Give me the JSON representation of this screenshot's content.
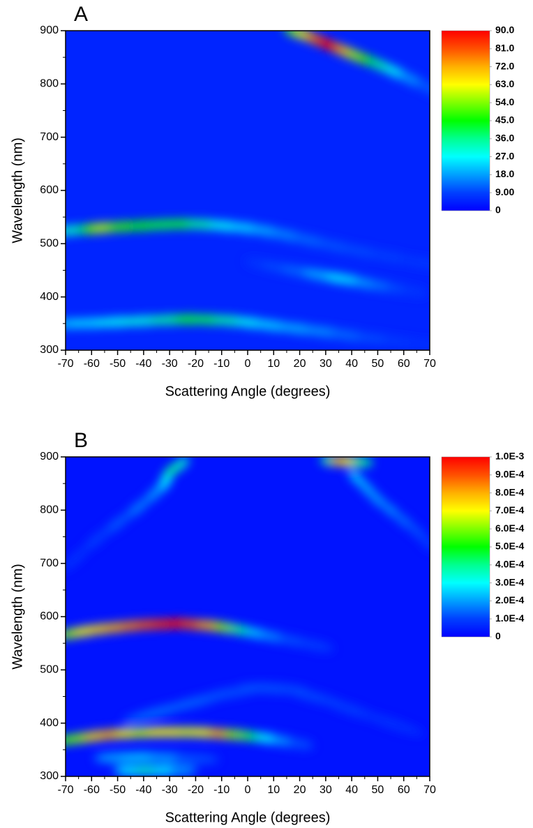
{
  "chart_data": [
    {
      "type": "heatmap",
      "label": "A",
      "xlabel": "Scattering Angle (degrees)",
      "ylabel": "Wavelength (nm)",
      "xlim": [
        -70,
        70
      ],
      "ylim": [
        300,
        900
      ],
      "xticks": [
        -70,
        -60,
        -50,
        -40,
        -30,
        -20,
        -10,
        0,
        10,
        20,
        30,
        40,
        50,
        60,
        70
      ],
      "yticks": [
        300,
        400,
        500,
        600,
        700,
        800,
        900
      ],
      "zlim": [
        0,
        90
      ],
      "zticks": [
        0,
        {
          "value": 9,
          "label": "9.00"
        },
        {
          "value": 18,
          "label": "18.0"
        },
        {
          "value": 27,
          "label": "27.0"
        },
        {
          "value": 36,
          "label": "36.0"
        },
        {
          "value": 45,
          "label": "45.0"
        },
        {
          "value": 54,
          "label": "54.0"
        },
        {
          "value": 63,
          "label": "63.0"
        },
        {
          "value": 72,
          "label": "72.0"
        },
        {
          "value": 81,
          "label": "81.0"
        },
        {
          "value": 90,
          "label": "90.0"
        }
      ],
      "background_value": 5,
      "ridges": [
        {
          "x": [
            18,
            22,
            26,
            30,
            34,
            38,
            42,
            47,
            52,
            57,
            63,
            70
          ],
          "y": [
            898,
            892,
            884,
            876,
            868,
            860,
            852,
            843,
            833,
            822,
            808,
            792
          ],
          "values": [
            50,
            62,
            78,
            90,
            88,
            70,
            55,
            45,
            35,
            28,
            18,
            12
          ]
        },
        {
          "x": [
            -68,
            -60,
            -55,
            -48,
            -40,
            -32,
            -24,
            -16,
            -8,
            0,
            8,
            16,
            25,
            35,
            45,
            55,
            65,
            70
          ],
          "y": [
            525,
            528,
            530,
            532,
            534,
            536,
            537,
            536,
            533,
            529,
            523,
            515,
            505,
            494,
            484,
            475,
            466,
            462
          ],
          "values": [
            32,
            45,
            58,
            48,
            44,
            42,
            42,
            35,
            28,
            24,
            20,
            16,
            13,
            11,
            10,
            9,
            8,
            8
          ]
        },
        {
          "x": [
            5,
            12,
            20,
            28,
            35,
            40,
            46,
            52,
            58,
            64
          ],
          "y": [
            462,
            455,
            448,
            441,
            435,
            431,
            425,
            420,
            415,
            410
          ],
          "values": [
            8,
            10,
            13,
            20,
            26,
            24,
            18,
            14,
            10,
            8
          ]
        },
        {
          "x": [
            -68,
            -60,
            -50,
            -40,
            -30,
            -22,
            -14,
            -6,
            2,
            10,
            20,
            30,
            40,
            50,
            60,
            70
          ],
          "y": [
            350,
            351,
            353,
            355,
            357,
            358,
            357,
            355,
            351,
            346,
            340,
            334,
            327,
            321,
            315,
            310
          ],
          "values": [
            22,
            24,
            28,
            30,
            35,
            42,
            40,
            34,
            28,
            23,
            20,
            17,
            13,
            10,
            8,
            7
          ]
        }
      ]
    },
    {
      "type": "heatmap",
      "label": "B",
      "xlabel": "Scattering Angle (degrees)",
      "ylabel": "Wavelength (nm)",
      "xlim": [
        -70,
        70
      ],
      "ylim": [
        300,
        900
      ],
      "xticks": [
        -70,
        -60,
        -50,
        -40,
        -30,
        -20,
        -10,
        0,
        10,
        20,
        30,
        40,
        50,
        60,
        70
      ],
      "yticks": [
        300,
        400,
        500,
        600,
        700,
        800,
        900
      ],
      "zlim": [
        0,
        0.001
      ],
      "zticks": [
        0,
        {
          "value": 0.0001,
          "label": "1.0E-4"
        },
        {
          "value": 0.0002,
          "label": "2.0E-4"
        },
        {
          "value": 0.0003,
          "label": "3.0E-4"
        },
        {
          "value": 0.0004,
          "label": "4.0E-4"
        },
        {
          "value": 0.0005,
          "label": "5.0E-4"
        },
        {
          "value": 0.0006,
          "label": "6.0E-4"
        },
        {
          "value": 0.0007,
          "label": "7.0E-4"
        },
        {
          "value": 0.0008,
          "label": "8.0E-4"
        },
        {
          "value": 0.0009,
          "label": "9.0E-4"
        },
        {
          "value": 0.001,
          "label": "1.0E-3"
        }
      ],
      "background_value": 3e-05,
      "ridges": [
        {
          "x": [
            -68,
            -62,
            -56,
            -50,
            -44,
            -38,
            -32,
            -26,
            -20,
            -14,
            -8,
            -2,
            4,
            10,
            18,
            26
          ],
          "y": [
            568,
            573,
            577,
            580,
            583,
            585,
            586,
            587,
            585,
            583,
            579,
            574,
            568,
            562,
            554,
            546
          ],
          "values": [
            0.0006,
            0.0007,
            0.00075,
            0.0008,
            0.00085,
            0.0009,
            0.00095,
            0.001,
            0.0009,
            0.0008,
            0.0006,
            0.0004,
            0.00025,
            0.00018,
            0.00012,
            0.0001
          ]
        },
        {
          "x": [
            -70,
            -64,
            -58,
            -52,
            -46,
            -40,
            -34,
            -28,
            -22,
            -16,
            -10,
            -4,
            2,
            8,
            14,
            20
          ],
          "y": [
            368,
            372,
            376,
            379,
            381,
            382,
            383,
            383,
            383,
            382,
            380,
            378,
            375,
            371,
            366,
            361
          ],
          "values": [
            0.0005,
            0.0006,
            0.00075,
            0.0008,
            0.0007,
            0.00065,
            0.0007,
            0.0007,
            0.00068,
            0.0007,
            0.0008,
            0.0006,
            0.00045,
            0.0003,
            0.0002,
            0.00012
          ]
        },
        {
          "x": [
            32,
            36,
            40,
            44
          ],
          "y": [
            893,
            892,
            891,
            890
          ],
          "values": [
            0.0004,
            0.0008,
            0.0007,
            0.0004
          ]
        },
        {
          "x": [
            -26,
            -30,
            -32,
            -36,
            -42,
            -50,
            -58,
            -66
          ],
          "y": [
            885,
            870,
            850,
            830,
            805,
            775,
            745,
            710
          ],
          "values": [
            0.00035,
            0.0004,
            0.0003,
            0.0002,
            0.00017,
            0.00013,
            0.0001,
            8e-05
          ]
        },
        {
          "x": [
            42,
            46,
            50,
            55,
            60,
            65,
            69
          ],
          "y": [
            860,
            840,
            820,
            800,
            780,
            760,
            740
          ],
          "values": [
            0.00025,
            0.00022,
            0.0002,
            0.00018,
            0.00015,
            0.00012,
            0.0001
          ]
        },
        {
          "x": [
            -50,
            -40,
            -30,
            -20
          ],
          "y": [
            335,
            336,
            335,
            333
          ],
          "values": [
            0.00022,
            0.00025,
            0.0002,
            0.00012
          ]
        },
        {
          "x": [
            -45,
            -38,
            -31,
            -25
          ],
          "y": [
            311,
            311,
            311,
            311
          ],
          "values": [
            0.0003,
            0.00035,
            0.0003,
            0.0002
          ]
        },
        {
          "x": [
            -35,
            -20,
            -5,
            10,
            25,
            40,
            55
          ],
          "y": [
            420,
            440,
            458,
            465,
            450,
            425,
            400
          ],
          "values": [
            0.00015,
            0.00014,
            0.00012,
            0.00012,
            0.00011,
            0.0001,
            8e-05
          ]
        }
      ]
    }
  ]
}
